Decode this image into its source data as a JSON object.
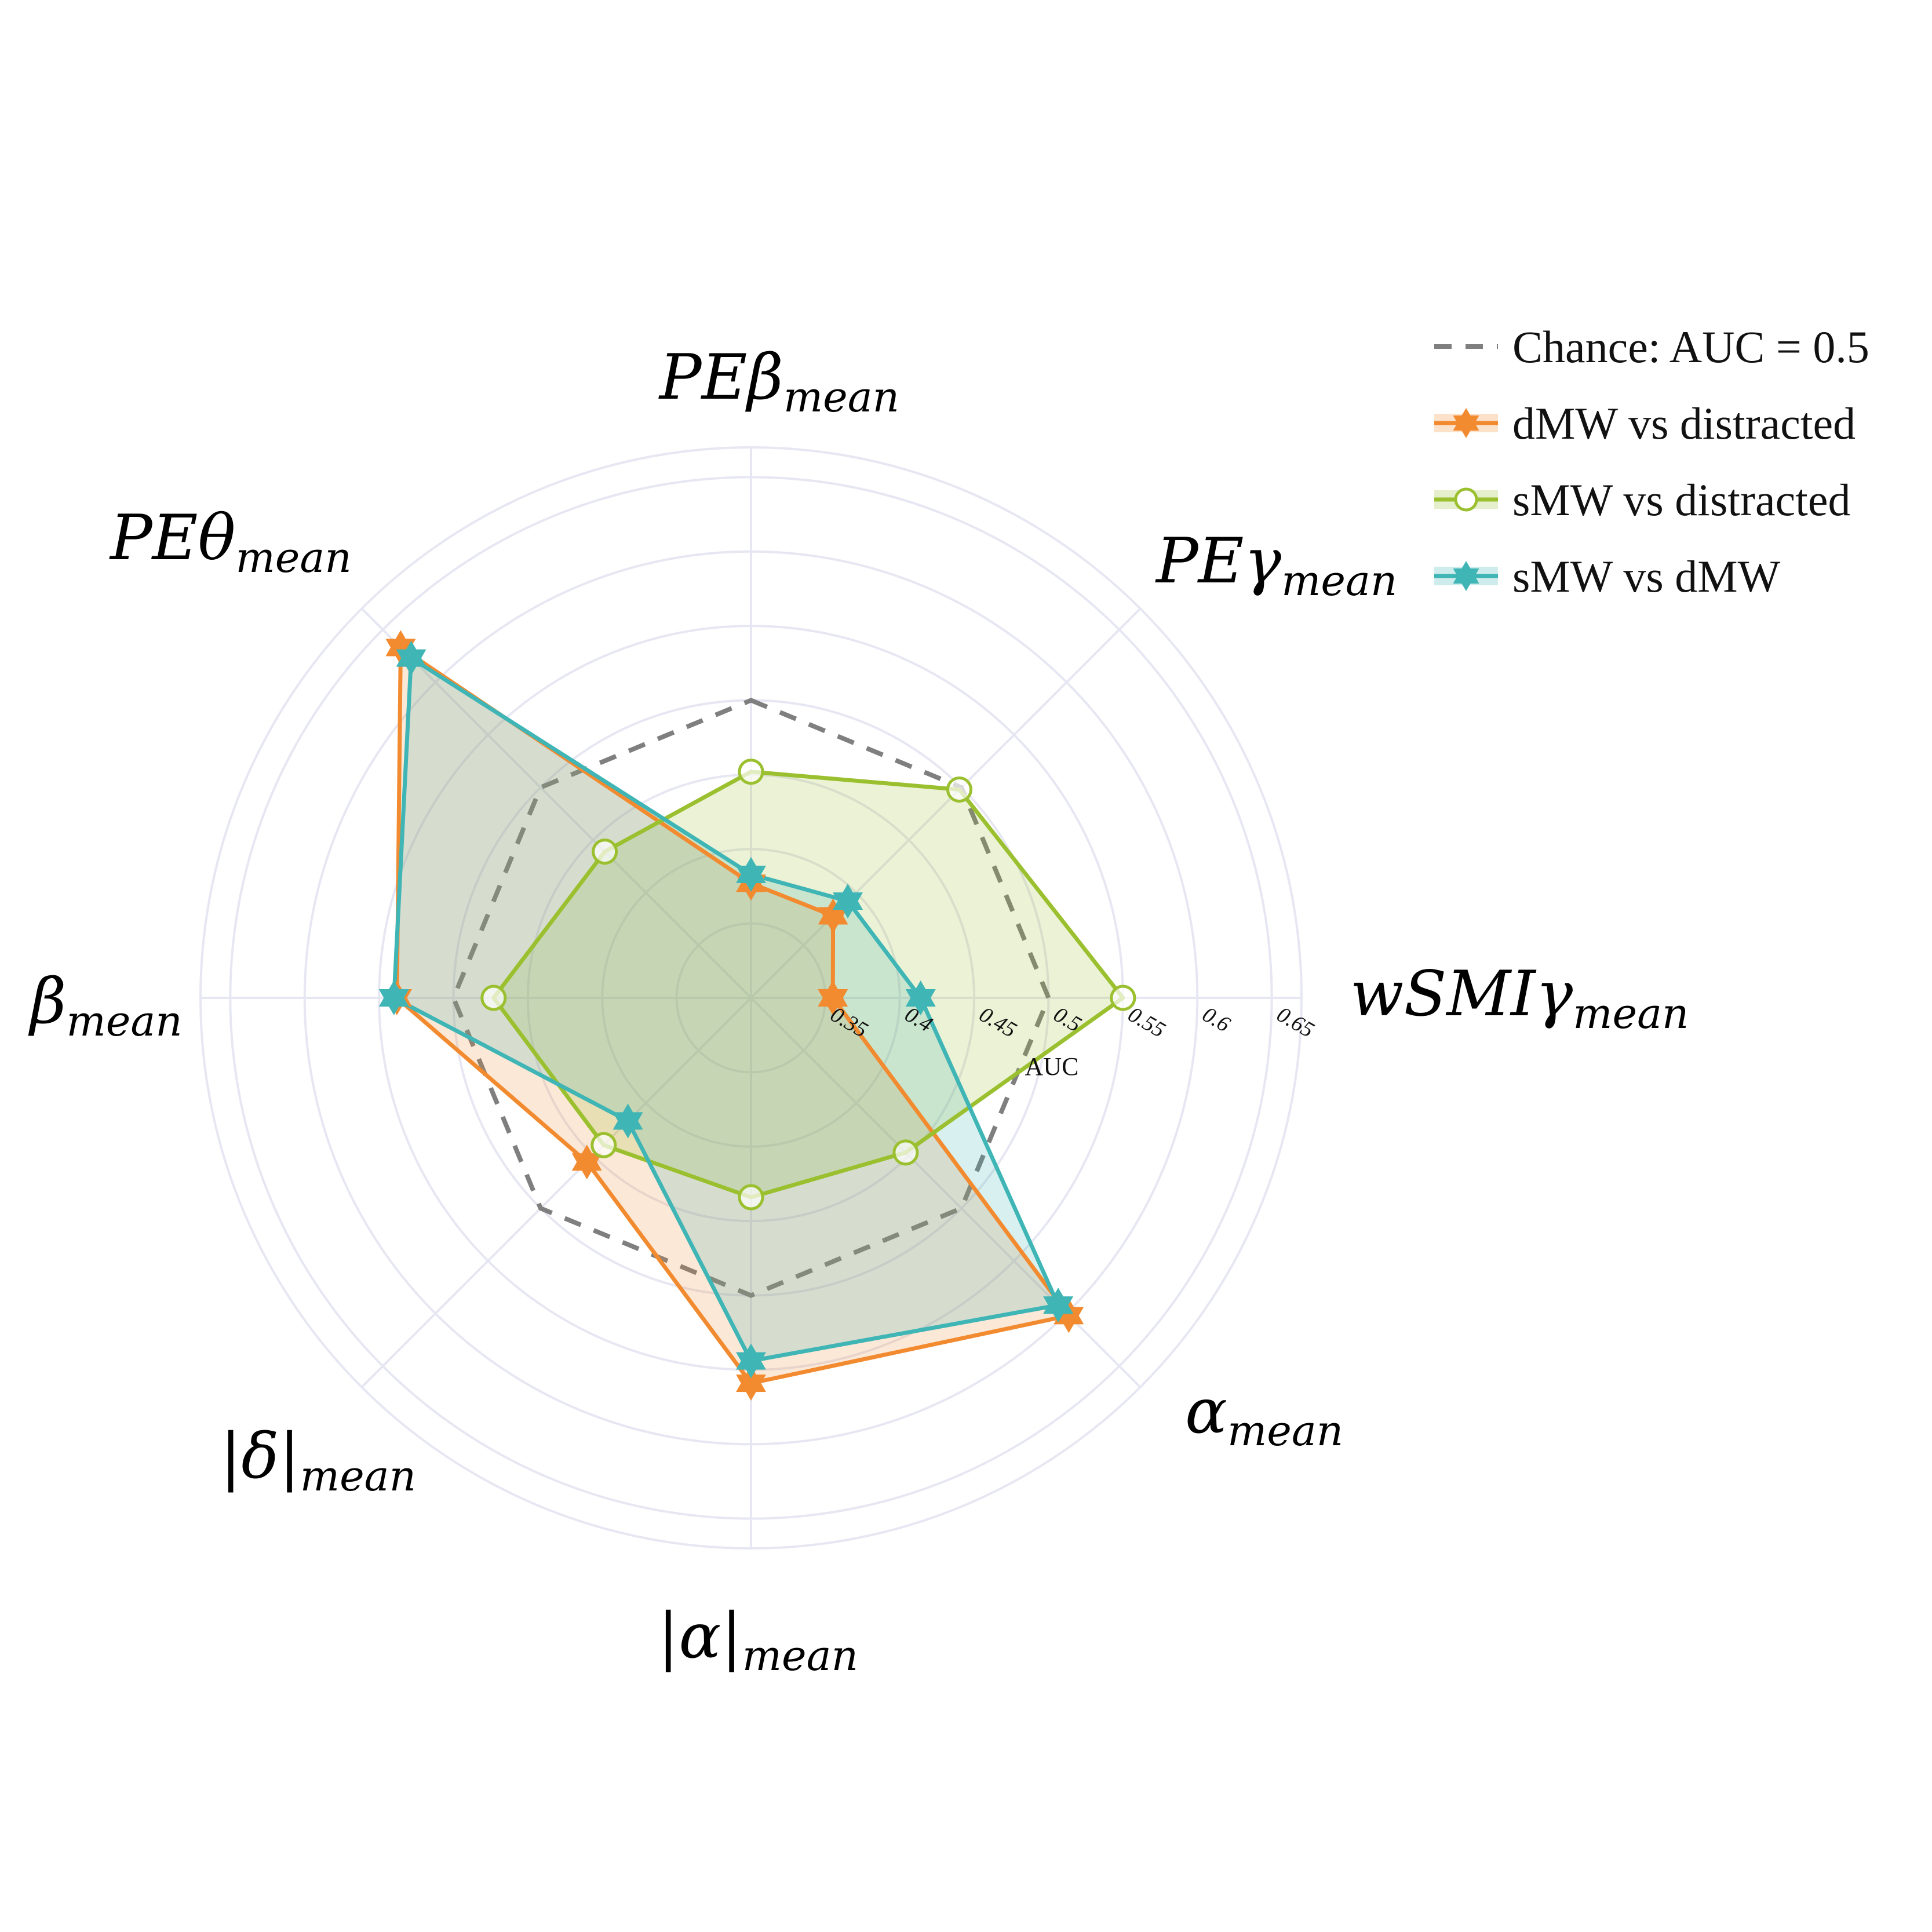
{
  "chart_data": {
    "type": "radar",
    "radial_axis_title": "AUC",
    "radial_range": [
      0.3,
      0.67
    ],
    "radial_ticks": [
      "0.35",
      "0.4",
      "0.45",
      "0.5",
      "0.55",
      "0.6",
      "0.65"
    ],
    "axes": [
      {
        "main": "PEβ",
        "sub": "mean"
      },
      {
        "main": "PEγ",
        "sub": "mean"
      },
      {
        "main": "wSMIγ",
        "sub": "mean"
      },
      {
        "main": "α",
        "sub": "mean"
      },
      {
        "main": "|α|",
        "sub": "mean"
      },
      {
        "main": "|δ|",
        "sub": "mean"
      },
      {
        "main": "β",
        "sub": "mean"
      },
      {
        "main": "PEθ",
        "sub": "mean"
      }
    ],
    "chance": {
      "name": "Chance: AUC = 0.5",
      "value": 0.5,
      "color": "#7f7f7f"
    },
    "series": [
      {
        "name": "dMW vs distracted",
        "color": "#f28a30",
        "marker": "star",
        "values": [
          0.377,
          0.378,
          0.355,
          0.602,
          0.559,
          0.456,
          0.538,
          0.633
        ]
      },
      {
        "name": "sMW vs distracted",
        "color": "#9bc02f",
        "marker": "circle-open",
        "values": [
          0.452,
          0.498,
          0.55,
          0.447,
          0.434,
          0.44,
          0.473,
          0.439
        ]
      },
      {
        "name": "sMW vs dMW",
        "color": "#3fb5b5",
        "marker": "star",
        "values": [
          0.383,
          0.392,
          0.414,
          0.592,
          0.544,
          0.417,
          0.54,
          0.623
        ]
      }
    ],
    "legend_position": "top-right"
  },
  "colors": {
    "grid": "#e6e7f2",
    "background": "#ffffff"
  }
}
